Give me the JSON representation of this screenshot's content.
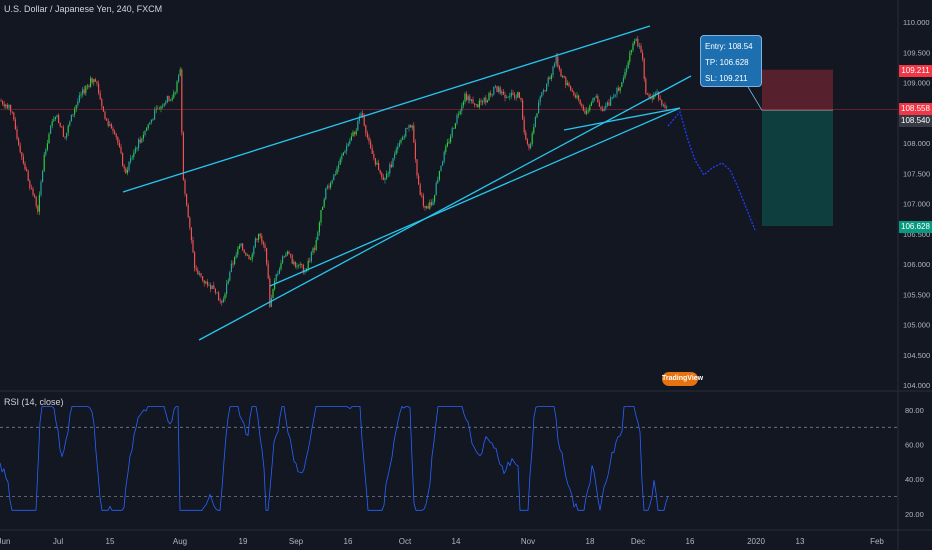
{
  "header": {
    "title": "U.S. Dollar / Japanese Yen, 240, FXCM"
  },
  "rsi": {
    "title": "RSI (14, close)",
    "levels": [
      70,
      30
    ],
    "axis": [
      "80.00",
      "60.00",
      "40.00",
      "20.00"
    ]
  },
  "price_axis": [
    "110.000",
    "109.500",
    "109.000",
    "108.500",
    "108.000",
    "107.500",
    "107.000",
    "106.500",
    "106.000",
    "105.500",
    "105.000",
    "104.500",
    "104.000"
  ],
  "price_tags": [
    {
      "label": "109.211",
      "color": "#f23645"
    },
    {
      "label": "108.558",
      "color": "#f23645"
    },
    {
      "label": "108.540",
      "color": "#363a45"
    },
    {
      "label": "106.628",
      "color": "#089981"
    }
  ],
  "time_axis": [
    "Jun",
    "Jul",
    "15",
    "Aug",
    "19",
    "Sep",
    "16",
    "Oct",
    "14",
    "Nov",
    "18",
    "Dec",
    "16",
    "2020",
    "13",
    "Feb"
  ],
  "trade": {
    "entry": "Entry: 108.54",
    "tp": "TP: 106.628",
    "sl": "SL: 109.211"
  },
  "watermark": "TradingView",
  "colors": {
    "up": "#26a69a",
    "up_bright": "#2ecc40",
    "down": "#ef5350",
    "trendline": "#27c6ee",
    "projection": "#1f3cff",
    "rsi": "#2962ff",
    "background": "#131722"
  }
}
